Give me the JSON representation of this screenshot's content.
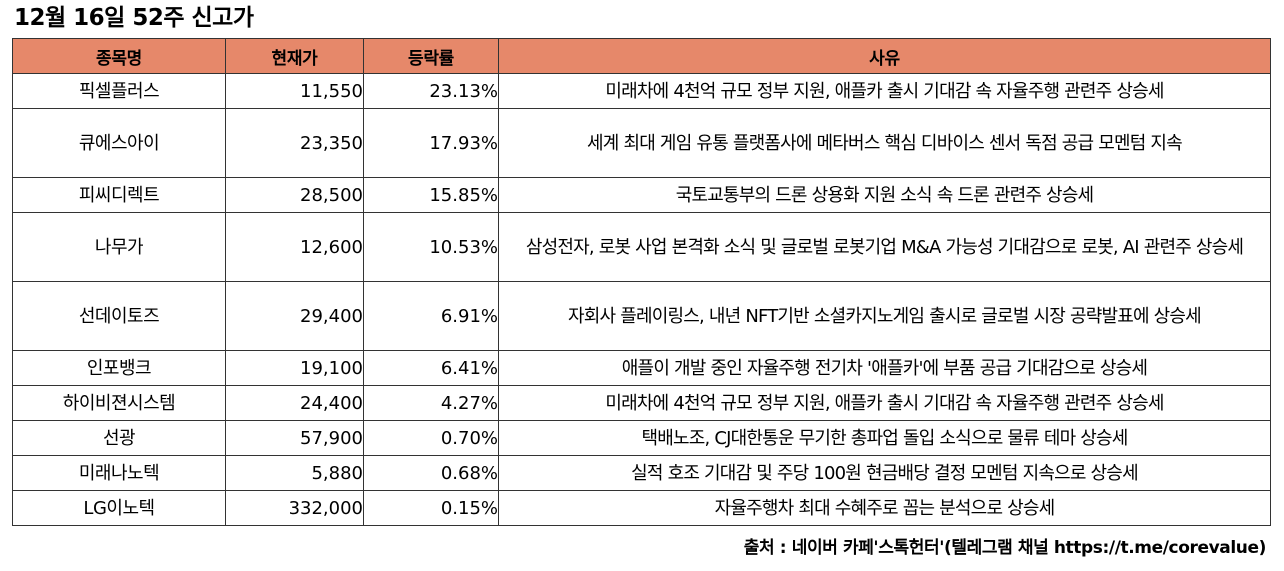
{
  "title": "12월 16일 52주 신고가",
  "table": {
    "headers": [
      "종목명",
      "현재가",
      "등락률",
      "사유"
    ],
    "rows": [
      {
        "name": "픽셀플러스",
        "price": "11,550",
        "change": "23.13%",
        "reason": "미래차에 4천억 규모 정부 지원, 애플카 출시 기대감 속 자율주행 관련주 상승세"
      },
      {
        "name": "큐에스아이",
        "price": "23,350",
        "change": "17.93%",
        "reason": "세계 최대 게임 유통 플랫폼사에 메타버스 핵심 디바이스 센서 독점 공급 모멘텀 지속"
      },
      {
        "name": "피씨디렉트",
        "price": "28,500",
        "change": "15.85%",
        "reason": "국토교통부의 드론 상용화 지원 소식 속 드론 관련주 상승세"
      },
      {
        "name": "나무가",
        "price": "12,600",
        "change": "10.53%",
        "reason": "삼성전자, 로봇 사업 본격화 소식 및 글로벌 로봇기업 M&A 가능성 기대감으로 로봇, AI 관련주 상승세"
      },
      {
        "name": "선데이토즈",
        "price": "29,400",
        "change": "6.91%",
        "reason": "자회사 플레이링스, 내년 NFT기반 소셜카지노게임 출시로 글로벌 시장 공략발표에 상승세"
      },
      {
        "name": "인포뱅크",
        "price": "19,100",
        "change": "6.41%",
        "reason": "애플이 개발 중인 자율주행 전기차 '애플카'에 부품 공급 기대감으로 상승세"
      },
      {
        "name": "하이비젼시스템",
        "price": "24,400",
        "change": "4.27%",
        "reason": "미래차에 4천억 규모 정부 지원, 애플카 출시 기대감 속 자율주행 관련주 상승세"
      },
      {
        "name": "선광",
        "price": "57,900",
        "change": "0.70%",
        "reason": "택배노조, CJ대한통운 무기한 총파업 돌입 소식으로 물류 테마 상승세"
      },
      {
        "name": "미래나노텍",
        "price": "5,880",
        "change": "0.68%",
        "reason": "실적 호조 기대감 및 주당 100원 현금배당 결정 모멘텀 지속으로 상승세"
      },
      {
        "name": "LG이노텍",
        "price": "332,000",
        "change": "0.15%",
        "reason": "자율주행차 최대 수혜주로 꼽는 분석으로 상승세"
      }
    ],
    "header_color": "#e6886a"
  },
  "source": "출처 : 네이버 카페'스톡헌터'(텔레그램 채널 https://t.me/corevalue)"
}
